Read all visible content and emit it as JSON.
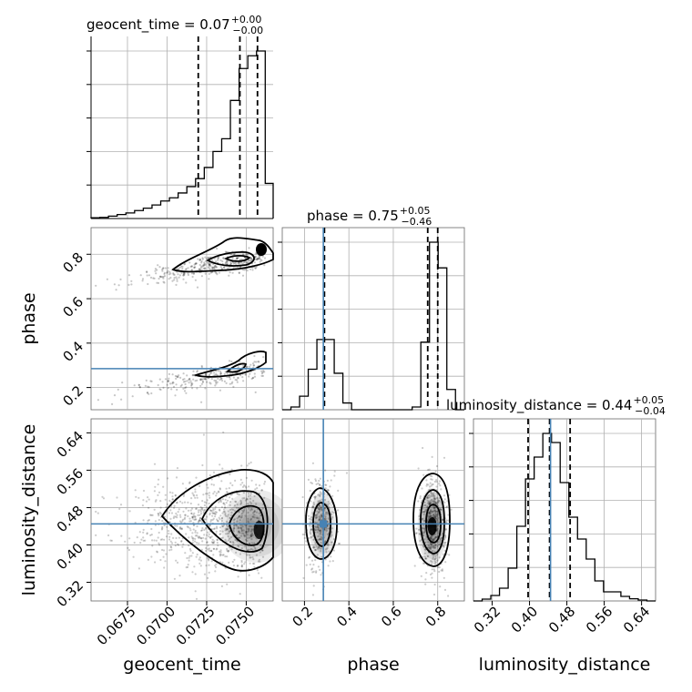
{
  "chart_data": {
    "type": "corner",
    "parameters": [
      "geocent_time",
      "phase",
      "luminosity_distance"
    ],
    "axis_labels": {
      "geocent_time": "geocent_time",
      "phase": "phase",
      "luminosity_distance": "luminosity_distance"
    },
    "ranges": {
      "geocent_time": [
        0.0652,
        0.0767
      ],
      "phase": [
        0.1,
        0.92
      ],
      "luminosity_distance": [
        0.28,
        0.67
      ]
    },
    "ticks": {
      "geocent_time": [
        0.0675,
        0.07,
        0.0725,
        0.075
      ],
      "phase": [
        0.2,
        0.4,
        0.6,
        0.8
      ],
      "luminosity_distance": [
        0.32,
        0.4,
        0.48,
        0.56,
        0.64
      ]
    },
    "tick_labels": {
      "geocent_time": [
        "0.0675",
        "0.0700",
        "0.0725",
        "0.0750"
      ],
      "phase_x": [
        "0.2",
        "0.4",
        "0.6",
        "0.8"
      ],
      "phase_y": [
        "0.2",
        "0.4",
        "0.6",
        "0.8"
      ],
      "luminosity_distance_x": [
        "0.32",
        "0.40",
        "0.48",
        "0.56",
        "0.64"
      ],
      "luminosity_distance_y": [
        "0.32",
        "0.40",
        "0.48",
        "0.56",
        "0.64"
      ]
    },
    "truths": {
      "phase": 0.285,
      "luminosity_distance": 0.445
    },
    "truth_color": "#4682b4",
    "titles": [
      {
        "param": "geocent_time",
        "text": "geocent_time = 0.07",
        "plus": "+0.00",
        "minus": "−0.00"
      },
      {
        "param": "phase",
        "text": "phase = 0.75",
        "plus": "+0.05",
        "minus": "−0.46"
      },
      {
        "param": "luminosity_distance",
        "text": "luminosity_distance = 0.44",
        "plus": "+0.05",
        "minus": "−0.04"
      }
    ],
    "quantiles": {
      "geocent_time": [
        0.07197,
        0.0746,
        0.07571
      ],
      "phase": [
        0.29,
        0.755,
        0.8
      ],
      "luminosity_distance": [
        0.397,
        0.443,
        0.487
      ]
    },
    "histograms": {
      "geocent_time": {
        "edges": [
          0.0652,
          0.06575,
          0.0663,
          0.06685,
          0.0674,
          0.06795,
          0.0685,
          0.06905,
          0.0696,
          0.07015,
          0.0707,
          0.07125,
          0.0718,
          0.07235,
          0.0729,
          0.07345,
          0.074,
          0.07455,
          0.0751,
          0.07565,
          0.0762,
          0.0767
        ],
        "counts": [
          0.005,
          0.007,
          0.015,
          0.025,
          0.035,
          0.05,
          0.065,
          0.085,
          0.11,
          0.13,
          0.16,
          0.2,
          0.25,
          0.32,
          0.42,
          0.5,
          0.74,
          0.94,
          1.02,
          1.05,
          0.22
        ]
      },
      "phase": {
        "edges": [
          0.1,
          0.139,
          0.178,
          0.217,
          0.256,
          0.295,
          0.334,
          0.373,
          0.412,
          0.451,
          0.49,
          0.529,
          0.568,
          0.607,
          0.646,
          0.685,
          0.724,
          0.763,
          0.802,
          0.841,
          0.88,
          0.92
        ],
        "counts": [
          0.0,
          0.02,
          0.1,
          0.3,
          0.52,
          0.52,
          0.27,
          0.05,
          0.0,
          0.0,
          0.0,
          0.0,
          0.0,
          0.0,
          0.0,
          0.02,
          0.5,
          1.24,
          1.05,
          0.15,
          0.0
        ]
      },
      "luminosity_distance": {
        "edges": [
          0.28,
          0.29857,
          0.31714,
          0.33571,
          0.35429,
          0.37286,
          0.39143,
          0.41,
          0.42857,
          0.44714,
          0.46571,
          0.48429,
          0.50286,
          0.52143,
          0.54,
          0.55857,
          0.57714,
          0.59571,
          0.61429,
          0.63286,
          0.65143,
          0.67
        ],
        "counts": [
          0.0,
          0.01,
          0.03,
          0.07,
          0.18,
          0.41,
          0.67,
          0.79,
          0.92,
          0.87,
          0.65,
          0.46,
          0.34,
          0.23,
          0.11,
          0.05,
          0.05,
          0.025,
          0.012,
          0.005,
          0.0
        ]
      }
    },
    "grid": true
  }
}
